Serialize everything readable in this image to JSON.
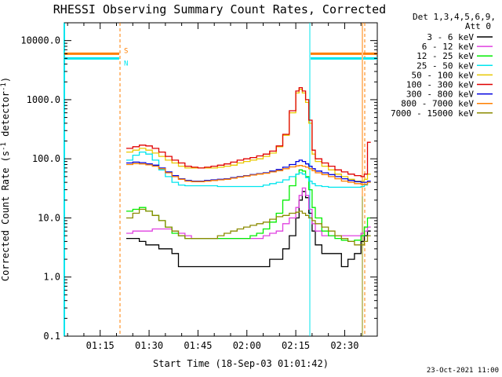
{
  "chart_data": {
    "type": "line",
    "title": "RHESSI Observing Summary Count Rates, Corrected",
    "xlabel": "Start Time (18-Sep-03 01:01:42)",
    "ylabel": "Corrected Count Rate (s",
    "ylabel_sup": "-1",
    "ylabel_tail": " detector",
    "ylabel_sup2": "-1",
    "ylabel_close": ")",
    "y_scale": "log",
    "ylim": [
      0.1,
      20000
    ],
    "xlim": [
      "01:04",
      "02:40"
    ],
    "x_ticks": [
      "01:15",
      "01:30",
      "01:45",
      "02:00",
      "02:15",
      "02:30"
    ],
    "y_ticks": [
      "0.1",
      "1.0",
      "10.0",
      "100.0",
      "1000.0",
      "10000.0"
    ],
    "legend_header": [
      "Det 1,3,4,5,6,9,",
      "Att 0"
    ],
    "legend_placement": "right",
    "footer_date": "23-Oct-2021 11:00",
    "flags": [
      {
        "label": "S",
        "color": "#ff7f00",
        "value": 6000
      },
      {
        "label": "N",
        "color": "#00e5ee",
        "value": 5000
      }
    ],
    "x": [
      "01:23",
      "01:25",
      "01:27",
      "01:29",
      "01:31",
      "01:33",
      "01:35",
      "01:37",
      "01:39",
      "01:41",
      "01:43",
      "01:45",
      "01:47",
      "01:49",
      "01:51",
      "01:53",
      "01:55",
      "01:57",
      "01:59",
      "02:01",
      "02:03",
      "02:05",
      "02:07",
      "02:09",
      "02:11",
      "02:13",
      "02:15",
      "02:16",
      "02:17",
      "02:18",
      "02:19",
      "02:20",
      "02:21",
      "02:23",
      "02:25",
      "02:27",
      "02:29",
      "02:31",
      "02:33",
      "02:35",
      "02:36",
      "02:37"
    ],
    "series": [
      {
        "name": "3 - 6 keV",
        "color": "#000000",
        "values": [
          4.5,
          4.5,
          4,
          3.5,
          3.5,
          3,
          3,
          2.5,
          1.5,
          1.5,
          1.5,
          1.5,
          1.5,
          1.5,
          1.5,
          1.5,
          1.5,
          1.5,
          1.5,
          1.5,
          1.5,
          1.5,
          2,
          2,
          3,
          5,
          10,
          20,
          28,
          22,
          12,
          6,
          3.5,
          2.5,
          2.5,
          2.5,
          1.5,
          2,
          2.5,
          4,
          5,
          6
        ]
      },
      {
        "name": "6 - 12 keV",
        "color": "#e040e0",
        "values": [
          5.5,
          6,
          6,
          6,
          6.5,
          6.5,
          6.5,
          6,
          5.5,
          5,
          4.5,
          4.5,
          4.5,
          4.5,
          4.5,
          4.5,
          4.5,
          4.5,
          4.5,
          4.5,
          4.5,
          5,
          5.5,
          6,
          8,
          10,
          15,
          24,
          32,
          24,
          14,
          8,
          6,
          5,
          5,
          5,
          5,
          5,
          5,
          5.5,
          6,
          7
        ]
      },
      {
        "name": "12 - 25 keV",
        "color": "#00ee00",
        "values": [
          13,
          14,
          15,
          13,
          11,
          9,
          7,
          5.5,
          5,
          4.5,
          4.5,
          4.5,
          4.5,
          4.5,
          4.5,
          4.5,
          4.5,
          4.5,
          4.5,
          5,
          5.5,
          6.5,
          8.5,
          12,
          20,
          35,
          55,
          65,
          62,
          50,
          30,
          15,
          10,
          6,
          5,
          4.5,
          4.2,
          4,
          4.2,
          5,
          7,
          10
        ]
      },
      {
        "name": "25 - 50 keV",
        "color": "#00e5ee",
        "values": [
          95,
          115,
          130,
          120,
          95,
          65,
          50,
          40,
          36,
          35,
          35,
          35,
          35,
          35,
          34,
          34,
          34,
          34,
          34,
          34,
          34,
          36,
          38,
          40,
          44,
          50,
          55,
          58,
          55,
          48,
          42,
          38,
          35,
          34,
          33,
          33,
          33,
          33,
          33,
          34,
          36,
          40
        ]
      },
      {
        "name": "50 - 100 keV",
        "color": "#e8c800",
        "values": [
          130,
          140,
          150,
          140,
          125,
          110,
          95,
          85,
          75,
          70,
          70,
          70,
          70,
          70,
          72,
          75,
          78,
          85,
          90,
          95,
          100,
          110,
          125,
          160,
          250,
          600,
          1300,
          1500,
          1300,
          900,
          400,
          120,
          90,
          75,
          65,
          55,
          50,
          45,
          42,
          42,
          45,
          55
        ]
      },
      {
        "name": "100 - 300 keV",
        "color": "#e00000",
        "values": [
          150,
          160,
          170,
          165,
          150,
          130,
          110,
          95,
          85,
          75,
          72,
          70,
          72,
          75,
          78,
          82,
          88,
          95,
          100,
          105,
          112,
          120,
          135,
          165,
          260,
          650,
          1400,
          1600,
          1400,
          1000,
          450,
          140,
          100,
          85,
          75,
          65,
          60,
          55,
          52,
          50,
          55,
          190
        ]
      },
      {
        "name": "300 - 800 keV",
        "color": "#0000e0",
        "values": [
          85,
          88,
          86,
          82,
          78,
          70,
          60,
          52,
          46,
          43,
          42,
          42,
          43,
          44,
          45,
          46,
          48,
          50,
          52,
          54,
          56,
          58,
          62,
          66,
          72,
          80,
          90,
          95,
          90,
          82,
          75,
          68,
          62,
          58,
          54,
          50,
          46,
          43,
          41,
          40,
          40,
          42
        ]
      },
      {
        "name": "800 - 7000 keV",
        "color": "#ff7f00",
        "values": [
          80,
          83,
          82,
          79,
          75,
          68,
          58,
          50,
          45,
          42,
          41,
          41,
          42,
          43,
          44,
          45,
          47,
          49,
          51,
          53,
          55,
          57,
          60,
          63,
          68,
          73,
          76,
          77,
          75,
          72,
          68,
          63,
          58,
          54,
          50,
          46,
          42,
          40,
          38,
          37,
          37,
          40
        ]
      },
      {
        "name": "7000 - 15000 keV",
        "color": "#8b8b00",
        "values": [
          10,
          12,
          14,
          13,
          11,
          9,
          7,
          6,
          5,
          4.5,
          4.5,
          4.5,
          4.5,
          4.5,
          5,
          5.5,
          6,
          6.5,
          7,
          7.5,
          8,
          8.5,
          9.5,
          10.5,
          11,
          12,
          12.5,
          13,
          12,
          11,
          10,
          9,
          8,
          7,
          6,
          5,
          4.5,
          4,
          3.5,
          3.5,
          4,
          5
        ]
      }
    ]
  }
}
